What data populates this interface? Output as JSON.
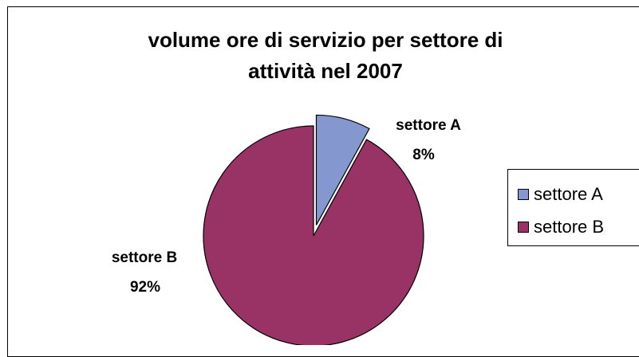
{
  "chart_data": {
    "type": "pie",
    "title": "volume ore di servizio per settore di attività nel 2007",
    "title_lines": [
      "volume ore di servizio per settore di",
      "attività nel 2007"
    ],
    "slices": [
      {
        "label": "settore A",
        "value": 8,
        "percent_label": "8%",
        "color": "#8497CF",
        "exploded": true
      },
      {
        "label": "settore B",
        "value": 92,
        "percent_label": "92%",
        "color": "#993366",
        "exploded": false
      }
    ],
    "start_angle_deg": 0,
    "direction": "clockwise",
    "legend": {
      "position": "right",
      "items": [
        "settore A",
        "settore B"
      ]
    }
  }
}
